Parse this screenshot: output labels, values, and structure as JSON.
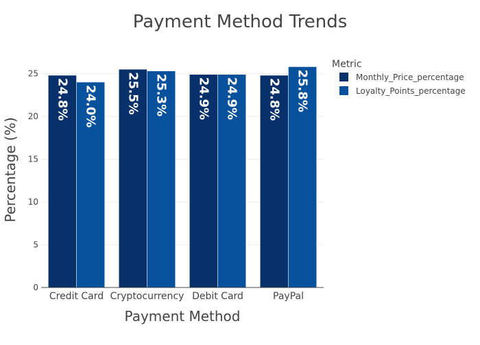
{
  "chart_data": {
    "type": "bar",
    "title": "Payment Method Trends",
    "xlabel": "Payment Method",
    "ylabel": "Percentage (%)",
    "categories": [
      "Credit Card",
      "Cryptocurrency",
      "Debit Card",
      "PayPal"
    ],
    "ylim": [
      0,
      27.2
    ],
    "yticks": [
      0,
      5,
      10,
      15,
      20,
      25
    ],
    "grid": true,
    "legend": {
      "title": "Metric",
      "placement": "top-right"
    },
    "series": [
      {
        "name": "Monthly_Price_percentage",
        "color": "#08306b",
        "values": [
          24.8,
          25.5,
          24.9,
          24.8
        ],
        "labels": [
          "24.8%",
          "25.5%",
          "24.9%",
          "24.8%"
        ]
      },
      {
        "name": "Loyalty_Points_percentage",
        "color": "#08519c",
        "values": [
          24.0,
          25.3,
          24.9,
          25.8
        ],
        "labels": [
          "24.0%",
          "25.3%",
          "24.9%",
          "25.8%"
        ]
      }
    ]
  }
}
